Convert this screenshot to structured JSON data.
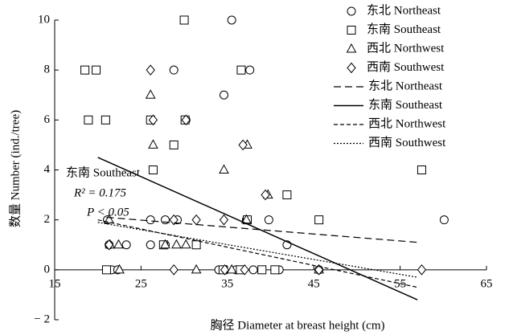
{
  "chart_data": {
    "type": "scatter",
    "x_label": "胸径 Diameter at breast height  (cm)",
    "y_label": "数量 Number (ind./tree)",
    "xlim": [
      15,
      65
    ],
    "xticks": [
      15,
      25,
      35,
      45,
      55,
      65
    ],
    "ylim": [
      -2,
      10
    ],
    "yticks": [
      {
        "value": -2,
        "label": "− 2"
      },
      0,
      2,
      4,
      6,
      8,
      10
    ],
    "annotations": [
      "东南 Southeast",
      "R² = 0.175",
      "P < 0.05"
    ],
    "series": [
      {
        "name": "东北 Northeast",
        "type": "scatter",
        "marker": "circle",
        "x": [
          28.8,
          35.5,
          37.6,
          34.6,
          30.2,
          37.2,
          39.8,
          21.1,
          26.1,
          27.8,
          29.2,
          60.1,
          23.3,
          21.3,
          26.1,
          27.8,
          41.9,
          45.6,
          21.6,
          22.3,
          34,
          36,
          38,
          41
        ],
        "values": [
          8,
          10,
          8,
          7,
          6,
          2,
          2,
          2,
          2,
          2,
          2,
          2,
          1,
          1,
          1,
          1,
          1,
          0,
          0,
          0,
          0,
          0,
          0,
          0
        ]
      },
      {
        "name": "东南 Southeast",
        "type": "scatter",
        "marker": "square",
        "x": [
          18.5,
          19.8,
          30,
          36.6,
          18.9,
          20.9,
          26.1,
          26.4,
          28.8,
          30.1,
          41.9,
          45.6,
          57.5,
          31.4,
          27.6,
          37.3,
          21,
          34.5,
          36.5,
          39,
          40.5
        ],
        "values": [
          8,
          8,
          10,
          8,
          6,
          6,
          6,
          4,
          5,
          6,
          3,
          2,
          4,
          1,
          1,
          2,
          0,
          0,
          0,
          0,
          0
        ]
      },
      {
        "name": "西北 Northwest",
        "type": "scatter",
        "marker": "triangle",
        "x": [
          26.1,
          26.4,
          37.3,
          34.6,
          39.7,
          37.2,
          21.4,
          22.4,
          27.8,
          29.1,
          30.2,
          21.3,
          22.5,
          31.4,
          45.6,
          35.5
        ],
        "values": [
          7,
          5,
          5,
          4,
          3,
          2,
          1,
          1,
          1,
          1,
          1,
          2,
          0,
          0,
          0,
          0
        ]
      },
      {
        "name": "西南 Southwest",
        "type": "scatter",
        "marker": "diamond",
        "x": [
          26.1,
          26.4,
          30.2,
          36.8,
          39.4,
          34.6,
          31.4,
          28.8,
          21.3,
          28.8,
          34.7,
          37,
          45.6,
          57.5
        ],
        "values": [
          8,
          6,
          6,
          5,
          3,
          2,
          2,
          2,
          1,
          0,
          0,
          0,
          0,
          0
        ]
      },
      {
        "name": "东北 Northeast",
        "type": "line",
        "dash": "9 5",
        "x": [
          21,
          57
        ],
        "values": [
          2.1,
          1.1
        ]
      },
      {
        "name": "东南 Southeast",
        "type": "line",
        "dash": "none",
        "x": [
          20,
          57
        ],
        "values": [
          4.5,
          -1.2
        ]
      },
      {
        "name": "西北 Northwest",
        "type": "line",
        "dash": "5 3",
        "x": [
          20,
          57
        ],
        "values": [
          2.0,
          -0.7
        ]
      },
      {
        "name": "西南 Southwest",
        "type": "line",
        "dash": "2 2",
        "x": [
          20,
          57
        ],
        "values": [
          1.9,
          -0.3
        ]
      }
    ]
  }
}
